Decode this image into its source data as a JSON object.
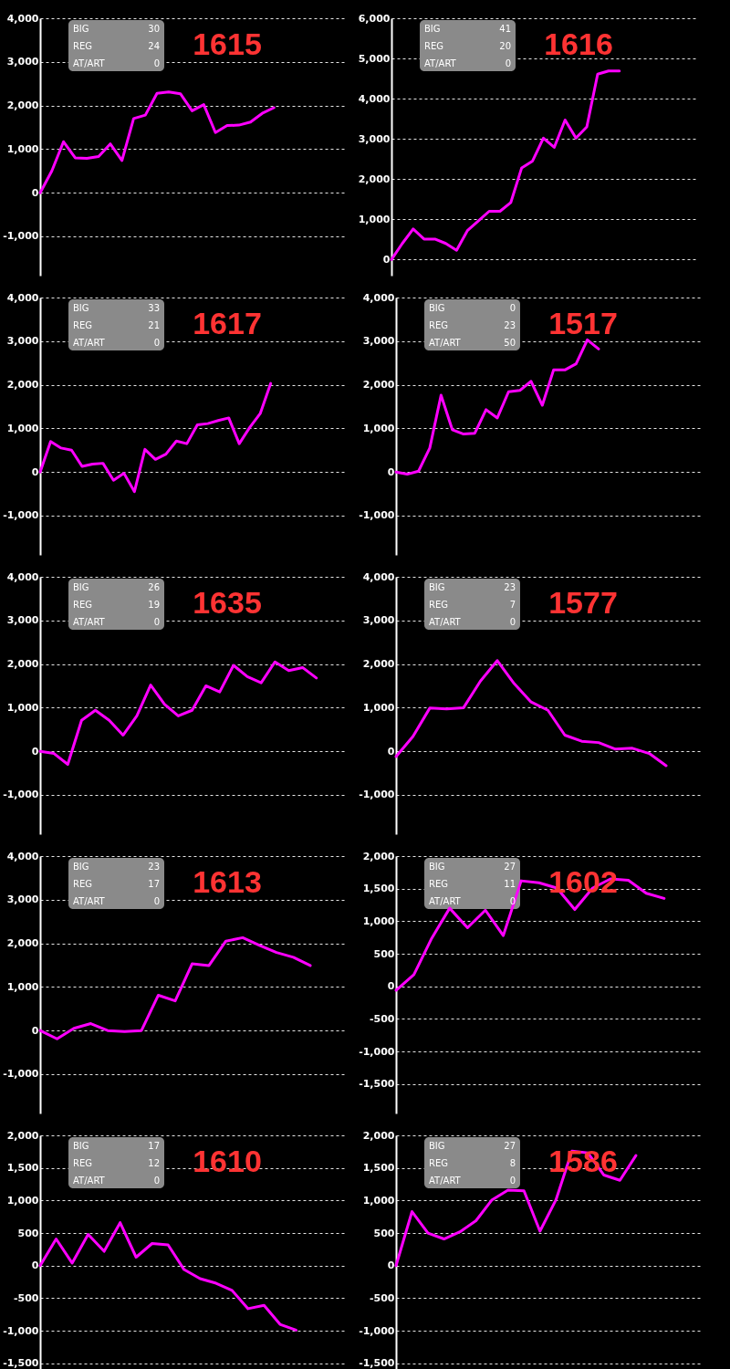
{
  "chart_data": [
    {
      "type": "line",
      "title": "1615",
      "annotations": [
        "BIG",
        "30",
        "REG",
        "24",
        "AT/ART",
        "0"
      ],
      "categories": [
        null,
        null,
        null,
        null,
        null,
        null,
        null,
        null,
        null,
        null,
        null,
        null,
        null,
        null,
        null,
        null,
        null,
        null,
        null,
        null,
        null,
        null,
        null,
        null,
        null,
        null,
        null
      ],
      "ylim": [
        -1900,
        4000
      ],
      "yticks": [
        {
          "value": -1000,
          "label": "-1,000"
        },
        0,
        {
          "value": 1000,
          "label": "1,000"
        },
        {
          "value": 2000,
          "label": "2,000"
        },
        {
          "value": 3000,
          "label": "3,000"
        },
        {
          "value": 4000,
          "label": "4,000"
        }
      ],
      "grid": "y",
      "tick_labels": "y",
      "series": [
        {
          "color": "#ff00ff",
          "values": [
            0,
            500,
            1170,
            800,
            790,
            830,
            1120,
            740,
            1700,
            1780,
            2280,
            2310,
            2270,
            1880,
            2020,
            1380,
            1540,
            1550,
            1620,
            1820,
            1950,
            null,
            null,
            null,
            null,
            null,
            null
          ]
        }
      ]
    },
    {
      "type": "line",
      "title": "1616",
      "annotations": [
        "BIG",
        "41",
        "REG",
        "20",
        "AT/ART",
        "0"
      ],
      "categories": [
        null,
        null,
        null,
        null,
        null,
        null,
        null,
        null,
        null,
        null,
        null,
        null,
        null,
        null,
        null,
        null,
        null,
        null,
        null,
        null,
        null,
        null,
        null,
        null,
        null,
        null,
        null,
        null,
        null
      ],
      "ylim": [
        -400,
        6000
      ],
      "yticks": [
        0,
        {
          "value": 1000,
          "label": "1,000"
        },
        {
          "value": 2000,
          "label": "2,000"
        },
        {
          "value": 3000,
          "label": "3,000"
        },
        {
          "value": 4000,
          "label": "4,000"
        },
        {
          "value": 5000,
          "label": "5,000"
        },
        {
          "value": 6000,
          "label": "6,000"
        }
      ],
      "grid": "y",
      "tick_labels": "y",
      "series": [
        {
          "color": "#ff00ff",
          "values": [
            0,
            400,
            760,
            510,
            510,
            400,
            230,
            720,
            960,
            1200,
            1200,
            1420,
            2280,
            2450,
            3020,
            2790,
            3470,
            3020,
            3300,
            4610,
            4690,
            4690,
            null,
            null,
            null,
            null,
            null,
            null,
            null
          ]
        }
      ]
    },
    {
      "type": "line",
      "title": "1617",
      "annotations": [
        "BIG",
        "33",
        "REG",
        "21",
        "AT/ART",
        "0"
      ],
      "categories": [
        null,
        null,
        null,
        null,
        null,
        null,
        null,
        null,
        null,
        null,
        null,
        null,
        null,
        null,
        null,
        null,
        null,
        null,
        null,
        null,
        null,
        null,
        null,
        null,
        null,
        null,
        null,
        null,
        null,
        null
      ],
      "ylim": [
        -1900,
        4000
      ],
      "yticks": [
        {
          "value": -1000,
          "label": "-1,000"
        },
        0,
        {
          "value": 1000,
          "label": "1,000"
        },
        {
          "value": 2000,
          "label": "2,000"
        },
        {
          "value": 3000,
          "label": "3,000"
        },
        {
          "value": 4000,
          "label": "4,000"
        }
      ],
      "grid": "y",
      "tick_labels": "y",
      "series": [
        {
          "color": "#ff00ff",
          "values": [
            0,
            700,
            550,
            500,
            130,
            180,
            200,
            -190,
            -30,
            -450,
            520,
            290,
            410,
            710,
            650,
            1080,
            1110,
            1180,
            1240,
            650,
            1020,
            1340,
            2030,
            null,
            null,
            null,
            null,
            null,
            null,
            null
          ]
        }
      ]
    },
    {
      "type": "line",
      "title": "1517",
      "annotations": [
        "BIG",
        "0",
        "REG",
        "23",
        "AT/ART",
        "50"
      ],
      "categories": [
        null,
        null,
        null,
        null,
        null,
        null,
        null,
        null,
        null,
        null,
        null,
        null,
        null,
        null,
        null,
        null,
        null,
        null,
        null,
        null,
        null,
        null,
        null,
        null,
        null,
        null,
        null,
        null
      ],
      "ylim": [
        -1900,
        4000
      ],
      "yticks": [
        {
          "value": -1000,
          "label": "-1,000"
        },
        0,
        {
          "value": 1000,
          "label": "1,000"
        },
        {
          "value": 2000,
          "label": "2,000"
        },
        {
          "value": 3000,
          "label": "3,000"
        },
        {
          "value": 4000,
          "label": "4,000"
        }
      ],
      "grid": "y",
      "tick_labels": "y",
      "series": [
        {
          "color": "#ff00ff",
          "values": [
            0,
            -50,
            20,
            550,
            1760,
            970,
            870,
            890,
            1430,
            1240,
            1840,
            1870,
            2080,
            1530,
            2340,
            2340,
            2480,
            3030,
            2820,
            null,
            null,
            null,
            null,
            null,
            null,
            null,
            null,
            null
          ]
        }
      ]
    },
    {
      "type": "line",
      "title": "1635",
      "annotations": [
        "BIG",
        "26",
        "REG",
        "19",
        "AT/ART",
        "0"
      ],
      "categories": [
        null,
        null,
        null,
        null,
        null,
        null,
        null,
        null,
        null,
        null,
        null,
        null,
        null,
        null,
        null,
        null,
        null,
        null,
        null,
        null,
        null,
        null,
        null
      ],
      "ylim": [
        -1900,
        4000
      ],
      "yticks": [
        {
          "value": -1000,
          "label": "-1,000"
        },
        0,
        {
          "value": 1000,
          "label": "1,000"
        },
        {
          "value": 2000,
          "label": "2,000"
        },
        {
          "value": 3000,
          "label": "3,000"
        },
        {
          "value": 4000,
          "label": "4,000"
        }
      ],
      "grid": "y",
      "tick_labels": "y",
      "series": [
        {
          "color": "#ff00ff",
          "values": [
            0,
            -50,
            -300,
            710,
            940,
            710,
            370,
            810,
            1520,
            1080,
            810,
            940,
            1500,
            1360,
            1970,
            1710,
            1570,
            2050,
            1850,
            1920,
            1680,
            null,
            null
          ]
        }
      ]
    },
    {
      "type": "line",
      "title": "1577",
      "annotations": [
        "BIG",
        "23",
        "REG",
        "7",
        "AT/ART",
        "0"
      ],
      "categories": [
        null,
        null,
        null,
        null,
        null,
        null,
        null,
        null,
        null,
        null,
        null,
        null,
        null,
        null,
        null,
        null,
        null,
        null,
        null
      ],
      "ylim": [
        -1900,
        4000
      ],
      "yticks": [
        {
          "value": -1000,
          "label": "-1,000"
        },
        0,
        {
          "value": 1000,
          "label": "1,000"
        },
        {
          "value": 2000,
          "label": "2,000"
        },
        {
          "value": 3000,
          "label": "3,000"
        },
        {
          "value": 4000,
          "label": "4,000"
        }
      ],
      "grid": "y",
      "tick_labels": "y",
      "series": [
        {
          "color": "#ff00ff",
          "values": [
            -120,
            340,
            990,
            970,
            1000,
            1610,
            2080,
            1550,
            1130,
            940,
            370,
            230,
            200,
            50,
            70,
            -50,
            -330,
            null,
            null
          ]
        }
      ]
    },
    {
      "type": "line",
      "title": "1613",
      "annotations": [
        "BIG",
        "23",
        "REG",
        "17",
        "AT/ART",
        "0"
      ],
      "categories": [
        null,
        null,
        null,
        null,
        null,
        null,
        null,
        null,
        null,
        null,
        null,
        null,
        null,
        null,
        null,
        null,
        null,
        null,
        null
      ],
      "ylim": [
        -1900,
        4000
      ],
      "yticks": [
        {
          "value": -1000,
          "label": "-1,000"
        },
        0,
        {
          "value": 1000,
          "label": "1,000"
        },
        {
          "value": 2000,
          "label": "2,000"
        },
        {
          "value": 3000,
          "label": "3,000"
        },
        {
          "value": 4000,
          "label": "4,000"
        }
      ],
      "grid": "y",
      "tick_labels": "y",
      "series": [
        {
          "color": "#ff00ff",
          "values": [
            0,
            -190,
            50,
            160,
            0,
            -20,
            0,
            810,
            680,
            1530,
            1490,
            2050,
            2130,
            1950,
            1790,
            1680,
            1490,
            null,
            null
          ]
        }
      ]
    },
    {
      "type": "line",
      "title": "1602",
      "annotations": [
        "BIG",
        "27",
        "REG",
        "11",
        "AT/ART",
        "0"
      ],
      "categories": [
        null,
        null,
        null,
        null,
        null,
        null,
        null,
        null,
        null,
        null,
        null,
        null,
        null,
        null,
        null,
        null,
        null,
        null
      ],
      "ylim": [
        -1950,
        2000
      ],
      "yticks": [
        {
          "value": -1500,
          "label": "-1,500"
        },
        {
          "value": -1000,
          "label": "-1,000"
        },
        -500,
        0,
        500,
        {
          "value": 1000,
          "label": "1,000"
        },
        {
          "value": 1500,
          "label": "1,500"
        },
        {
          "value": 2000,
          "label": "2,000"
        }
      ],
      "grid": "y",
      "tick_labels": "y",
      "series": [
        {
          "color": "#ff00ff",
          "values": [
            -60,
            180,
            740,
            1200,
            900,
            1170,
            780,
            1620,
            1590,
            1510,
            1180,
            1510,
            1650,
            1630,
            1430,
            1350,
            null,
            null
          ]
        }
      ]
    },
    {
      "type": "line",
      "title": "1610",
      "annotations": [
        "BIG",
        "17",
        "REG",
        "12",
        "AT/ART",
        "0"
      ],
      "categories": [
        null,
        null,
        null,
        null,
        null,
        null,
        null,
        null,
        null,
        null,
        null,
        null,
        null,
        null,
        null,
        null,
        null,
        null,
        null,
        null
      ],
      "ylim": [
        -1950,
        2000
      ],
      "yticks": [
        {
          "value": -1500,
          "label": "-1,500"
        },
        {
          "value": -1000,
          "label": "-1,000"
        },
        -500,
        0,
        500,
        {
          "value": 1000,
          "label": "1,000"
        },
        {
          "value": 1500,
          "label": "1,500"
        },
        {
          "value": 2000,
          "label": "2,000"
        }
      ],
      "grid": "y",
      "tick_labels": "y",
      "series": [
        {
          "color": "#ff00ff",
          "values": [
            0,
            410,
            40,
            480,
            220,
            660,
            130,
            340,
            320,
            -60,
            -200,
            -270,
            -380,
            -660,
            -610,
            -900,
            -990,
            null,
            null,
            null
          ]
        }
      ]
    },
    {
      "type": "line",
      "title": "1586",
      "annotations": [
        "BIG",
        "27",
        "REG",
        "8",
        "AT/ART",
        "0"
      ],
      "categories": [
        null,
        null,
        null,
        null,
        null,
        null,
        null,
        null,
        null,
        null,
        null,
        null,
        null,
        null,
        null,
        null,
        null,
        null,
        null,
        null
      ],
      "ylim": [
        -1950,
        2000
      ],
      "yticks": [
        {
          "value": -1500,
          "label": "-1,500"
        },
        {
          "value": -1000,
          "label": "-1,000"
        },
        -500,
        0,
        500,
        {
          "value": 1000,
          "label": "1,000"
        },
        {
          "value": 1500,
          "label": "1,500"
        },
        {
          "value": 2000,
          "label": "2,000"
        }
      ],
      "grid": "y",
      "tick_labels": "y",
      "series": [
        {
          "color": "#ff00ff",
          "values": [
            0,
            830,
            500,
            410,
            520,
            690,
            1010,
            1160,
            1150,
            530,
            1010,
            1760,
            1730,
            1390,
            1310,
            1690,
            null,
            null,
            null,
            null
          ]
        }
      ]
    }
  ]
}
